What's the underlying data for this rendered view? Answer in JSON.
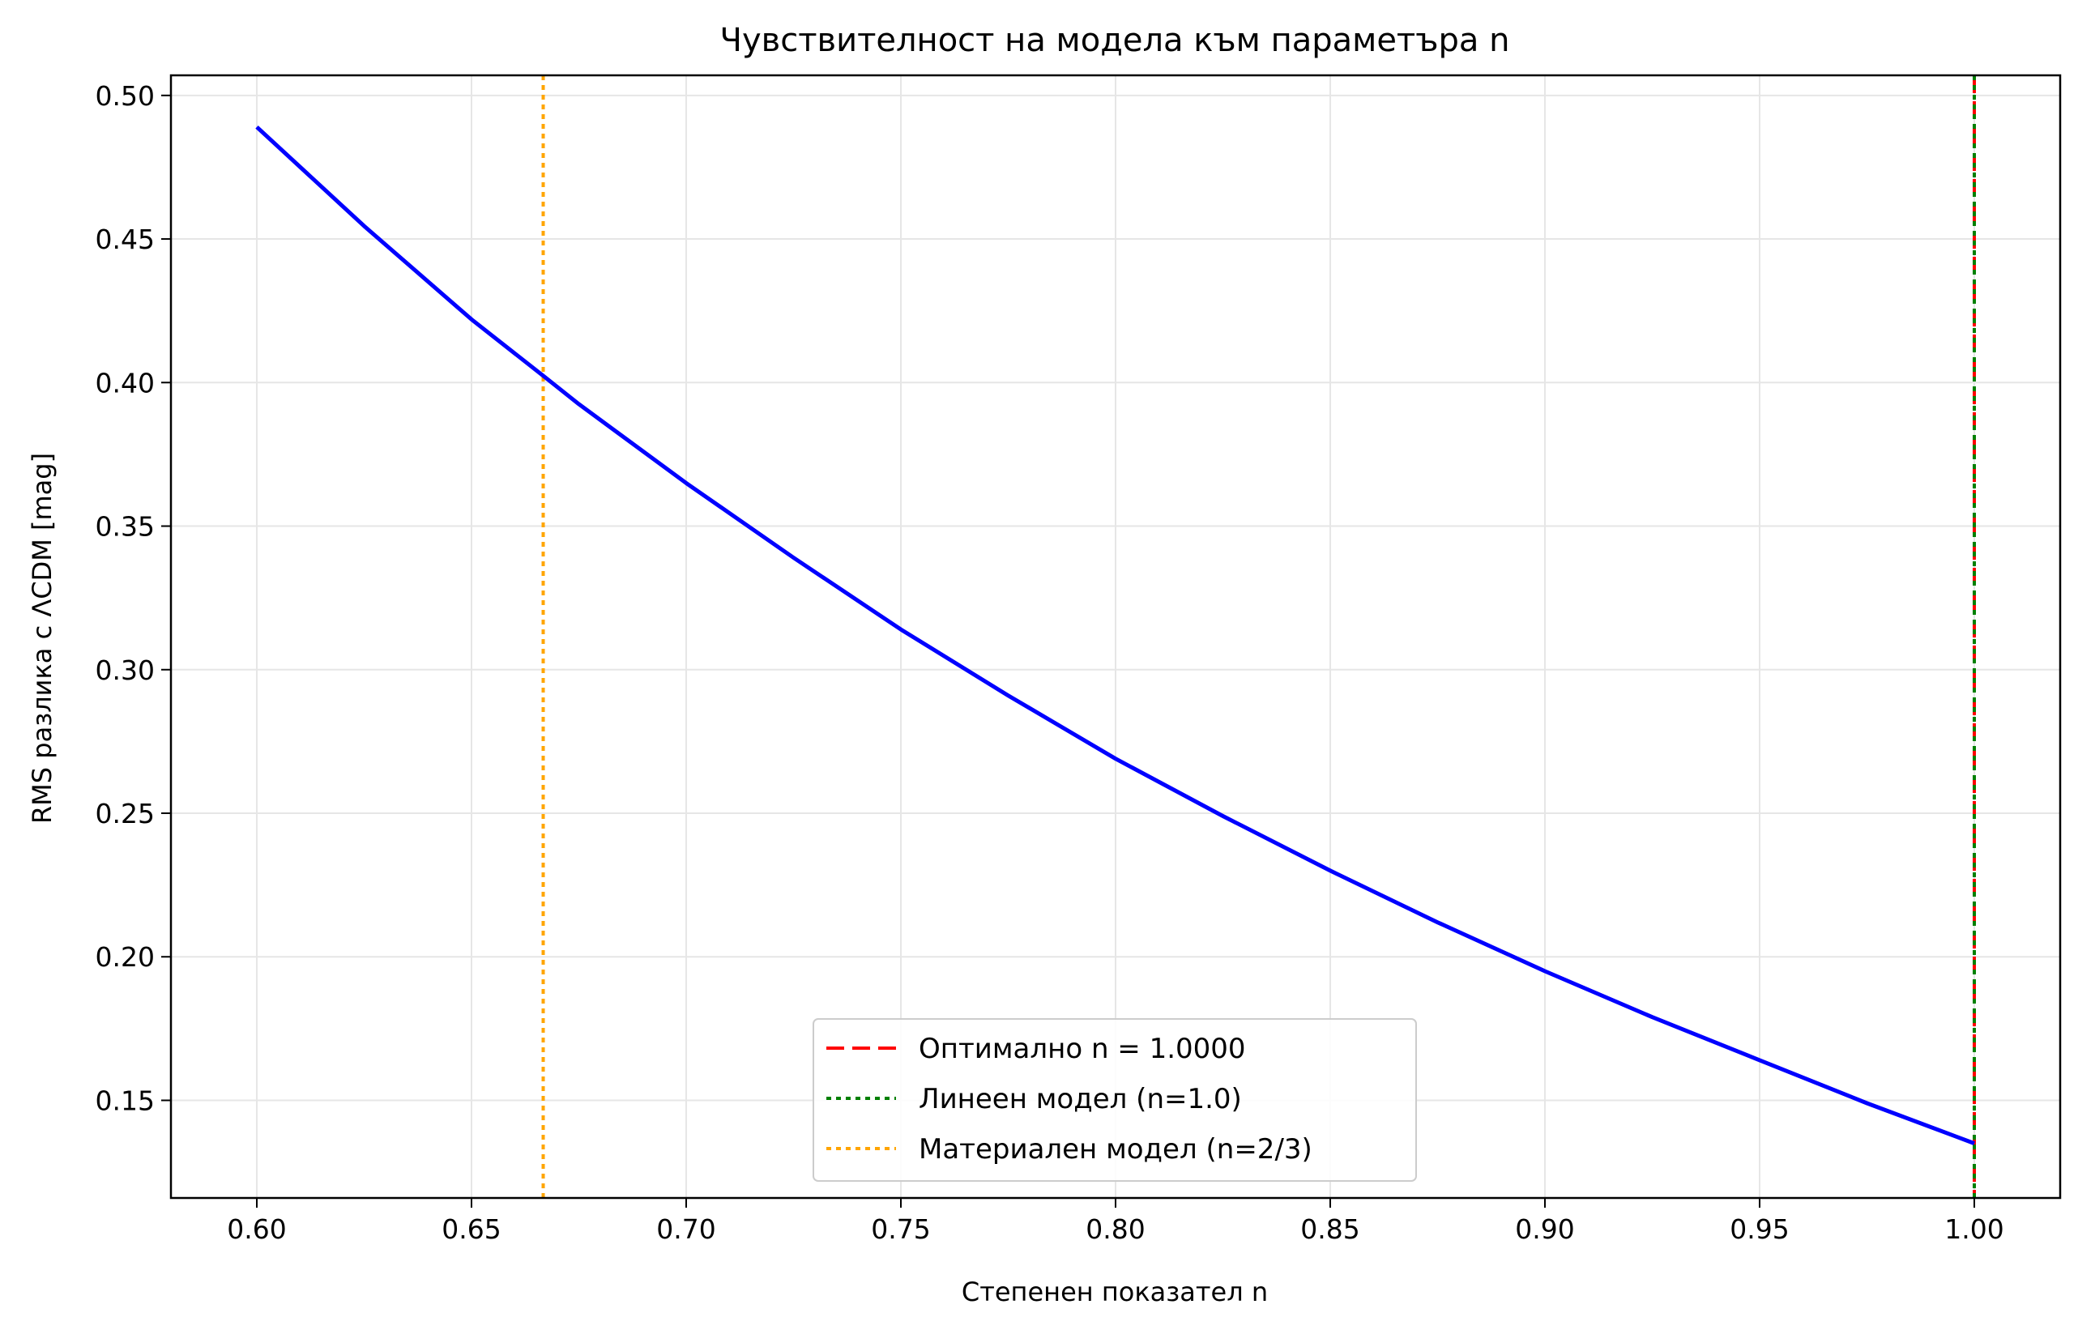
{
  "chart_data": {
    "type": "line",
    "title": "Чувствителност на модела към параметъра n",
    "xlabel": "Степенен показател n",
    "ylabel": "RMS разлика с ΛCDM [mag]",
    "xlim": [
      0.58,
      1.02
    ],
    "ylim": [
      0.116,
      0.507
    ],
    "grid": true,
    "legend_position": "lower center",
    "x_ticks": [
      "0.60",
      "0.65",
      "0.70",
      "0.75",
      "0.80",
      "0.85",
      "0.90",
      "0.95",
      "1.00"
    ],
    "y_ticks": [
      "0.15",
      "0.20",
      "0.25",
      "0.30",
      "0.35",
      "0.40",
      "0.45",
      "0.50"
    ],
    "series": [
      {
        "color": "#0000ff",
        "x": [
          0.6,
          0.625,
          0.65,
          0.667,
          0.675,
          0.7,
          0.725,
          0.75,
          0.775,
          0.8,
          0.825,
          0.85,
          0.875,
          0.9,
          0.925,
          0.95,
          0.975,
          1.0
        ],
        "y": [
          0.489,
          0.4545,
          0.422,
          0.402,
          0.3925,
          0.365,
          0.339,
          0.314,
          0.291,
          0.269,
          0.249,
          0.23,
          0.212,
          0.195,
          0.179,
          0.164,
          0.149,
          0.135
        ]
      }
    ],
    "vertical_lines": [
      {
        "x": 1.0,
        "color": "#ff0000",
        "style": "dashed",
        "label": "Оптимално n = 1.0000"
      },
      {
        "x": 1.0,
        "color": "#008000",
        "style": "dotted",
        "label": "Линеен модел (n=1.0)"
      },
      {
        "x": 0.6667,
        "color": "#ffa500",
        "style": "dotted",
        "label": "Материален модел (n=2/3)"
      }
    ]
  }
}
